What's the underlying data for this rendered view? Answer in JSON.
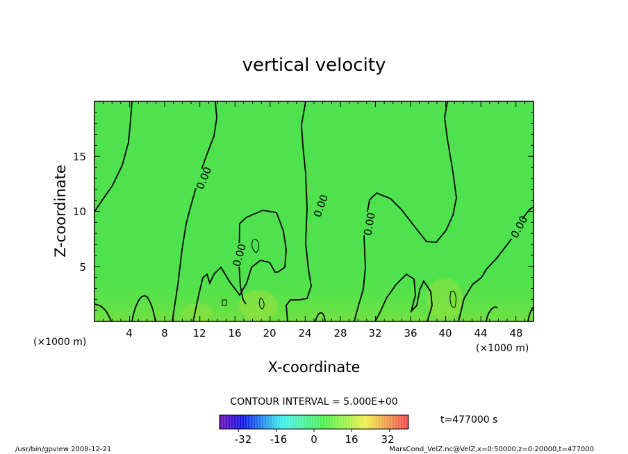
{
  "chart_data": {
    "type": "contour",
    "title": "vertical velocity",
    "xlabel": "X-coordinate",
    "ylabel": "Z-coordinate",
    "x_unit": "(×1000 m)",
    "y_unit": "(×1000 m)",
    "xlim": [
      0,
      50
    ],
    "ylim": [
      0,
      20
    ],
    "x_ticks": [
      "4",
      "8",
      "12",
      "16",
      "20",
      "24",
      "28",
      "32",
      "36",
      "40",
      "44",
      "48"
    ],
    "y_ticks": [
      "5",
      "10",
      "15"
    ],
    "contour_interval": "CONTOUR INTERVAL = 5.000E+00",
    "contour_labels": [
      "0.00",
      "0.00",
      "0.00",
      "0.00",
      "0.00",
      "0.00"
    ],
    "colorbar": {
      "ticks": [
        "-32",
        "-16",
        "0",
        "16",
        "32"
      ],
      "min": -40,
      "max": 40
    },
    "time_label": "t=477000 s",
    "field_color": "#4ee24e"
  },
  "footer": {
    "left": "/usr/bin/gpview   2008-12-21",
    "right": "MarsCond_VelZ.nc@VelZ,x=0:50000,z=0:20000,t=477000"
  }
}
